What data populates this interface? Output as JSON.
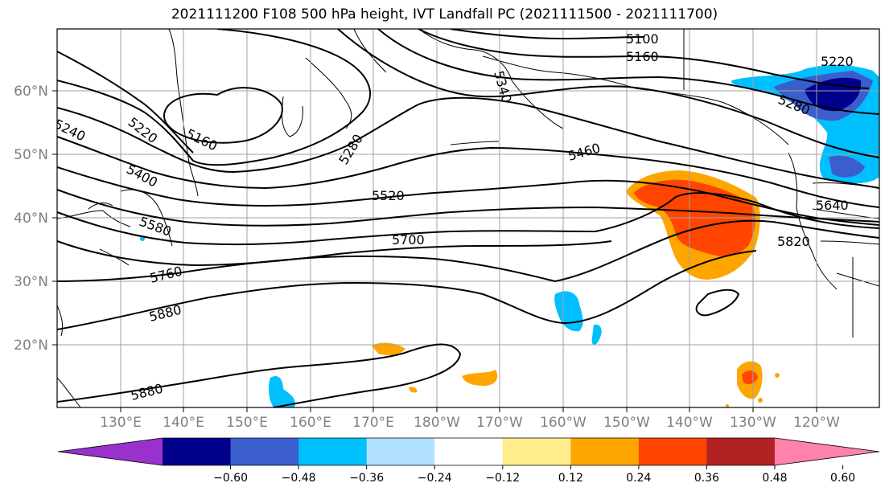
{
  "title": "2021111200 F108 500 hPa height, IVT Landfall PC (2021111500 - 2021111700)",
  "lat_labels": [
    "60°N",
    "50°N",
    "40°N",
    "30°N",
    "20°N"
  ],
  "lon_labels": [
    "130°E",
    "140°E",
    "150°E",
    "160°E",
    "170°E",
    "180°W",
    "170°W",
    "160°W",
    "150°W",
    "140°W",
    "130°W",
    "120°W"
  ],
  "contour_labels": [
    "5100",
    "5160",
    "5220",
    "5280",
    "5340",
    "5460",
    "5520",
    "5640",
    "5700",
    "5820",
    "5220",
    "5160",
    "5280",
    "5240",
    "5400",
    "5580",
    "5760",
    "5880",
    "5880"
  ],
  "colorbar": {
    "colors": [
      "#9932cc",
      "#00008b",
      "#3a5fcd",
      "#00bfff",
      "#b0e2ff",
      "#ffffff",
      "#ffec8b",
      "#ffa500",
      "#ff4500",
      "#b22222",
      "#ff82ab"
    ],
    "tick_labels": [
      "−0.60",
      "−0.48",
      "−0.36",
      "−0.24",
      "−0.12",
      "0.12",
      "0.24",
      "0.36",
      "0.48",
      "0.60"
    ]
  }
}
